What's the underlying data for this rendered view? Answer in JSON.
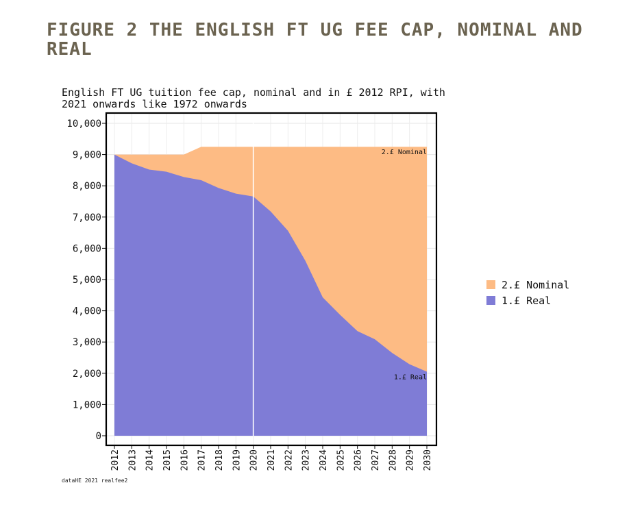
{
  "figure": {
    "title": "FIGURE 2 THE ENGLISH FT UG FEE CAP, NOMINAL AND REAL",
    "footer": "dataHE 2021 realfee2"
  },
  "chart_data": {
    "type": "area",
    "title": "English FT UG tuition fee cap, nominal and in £ 2012 RPI, with 2021 onwards like 1972 onwards",
    "xlabel": "",
    "ylabel": "",
    "x": [
      2012,
      2013,
      2014,
      2015,
      2016,
      2017,
      2018,
      2019,
      2020,
      2021,
      2022,
      2023,
      2024,
      2025,
      2026,
      2027,
      2028,
      2029,
      2030
    ],
    "x_tick_labels": [
      "2012",
      "2013",
      "2014",
      "2015",
      "2016",
      "2017",
      "2018",
      "2019",
      "2020",
      "2021",
      "2022",
      "2023",
      "2024",
      "2025",
      "2026",
      "2027",
      "2028",
      "2029",
      "2030"
    ],
    "ylim": [
      0,
      10000
    ],
    "y_ticks": [
      0,
      1000,
      2000,
      3000,
      4000,
      5000,
      6000,
      7000,
      8000,
      9000,
      10000
    ],
    "y_tick_labels": [
      "0",
      "1,000",
      "2,000",
      "3,000",
      "4,000",
      "5,000",
      "6,000",
      "7,000",
      "8,000",
      "9,000",
      "10,000"
    ],
    "series": [
      {
        "name": "2.£ Nominal",
        "color": "#fdbb84",
        "values": [
          9000,
          9000,
          9000,
          9000,
          9000,
          9250,
          9250,
          9250,
          9250,
          9250,
          9250,
          9250,
          9250,
          9250,
          9250,
          9250,
          9250,
          9250,
          9250
        ]
      },
      {
        "name": "1.£ Real",
        "color": "#7f7cd6",
        "values": [
          9000,
          8720,
          8520,
          8450,
          8280,
          8180,
          7930,
          7750,
          7660,
          7180,
          6560,
          5600,
          4430,
          3870,
          3350,
          3090,
          2650,
          2290,
          2050
        ]
      }
    ],
    "annotations": [
      {
        "text": "2.£ Nominal",
        "x": 2030,
        "y": 9250
      },
      {
        "text": "1.£ Real",
        "x": 2030,
        "y": 2050
      }
    ],
    "vertical_marker_x": 2020,
    "grid": true,
    "legend": "right"
  }
}
